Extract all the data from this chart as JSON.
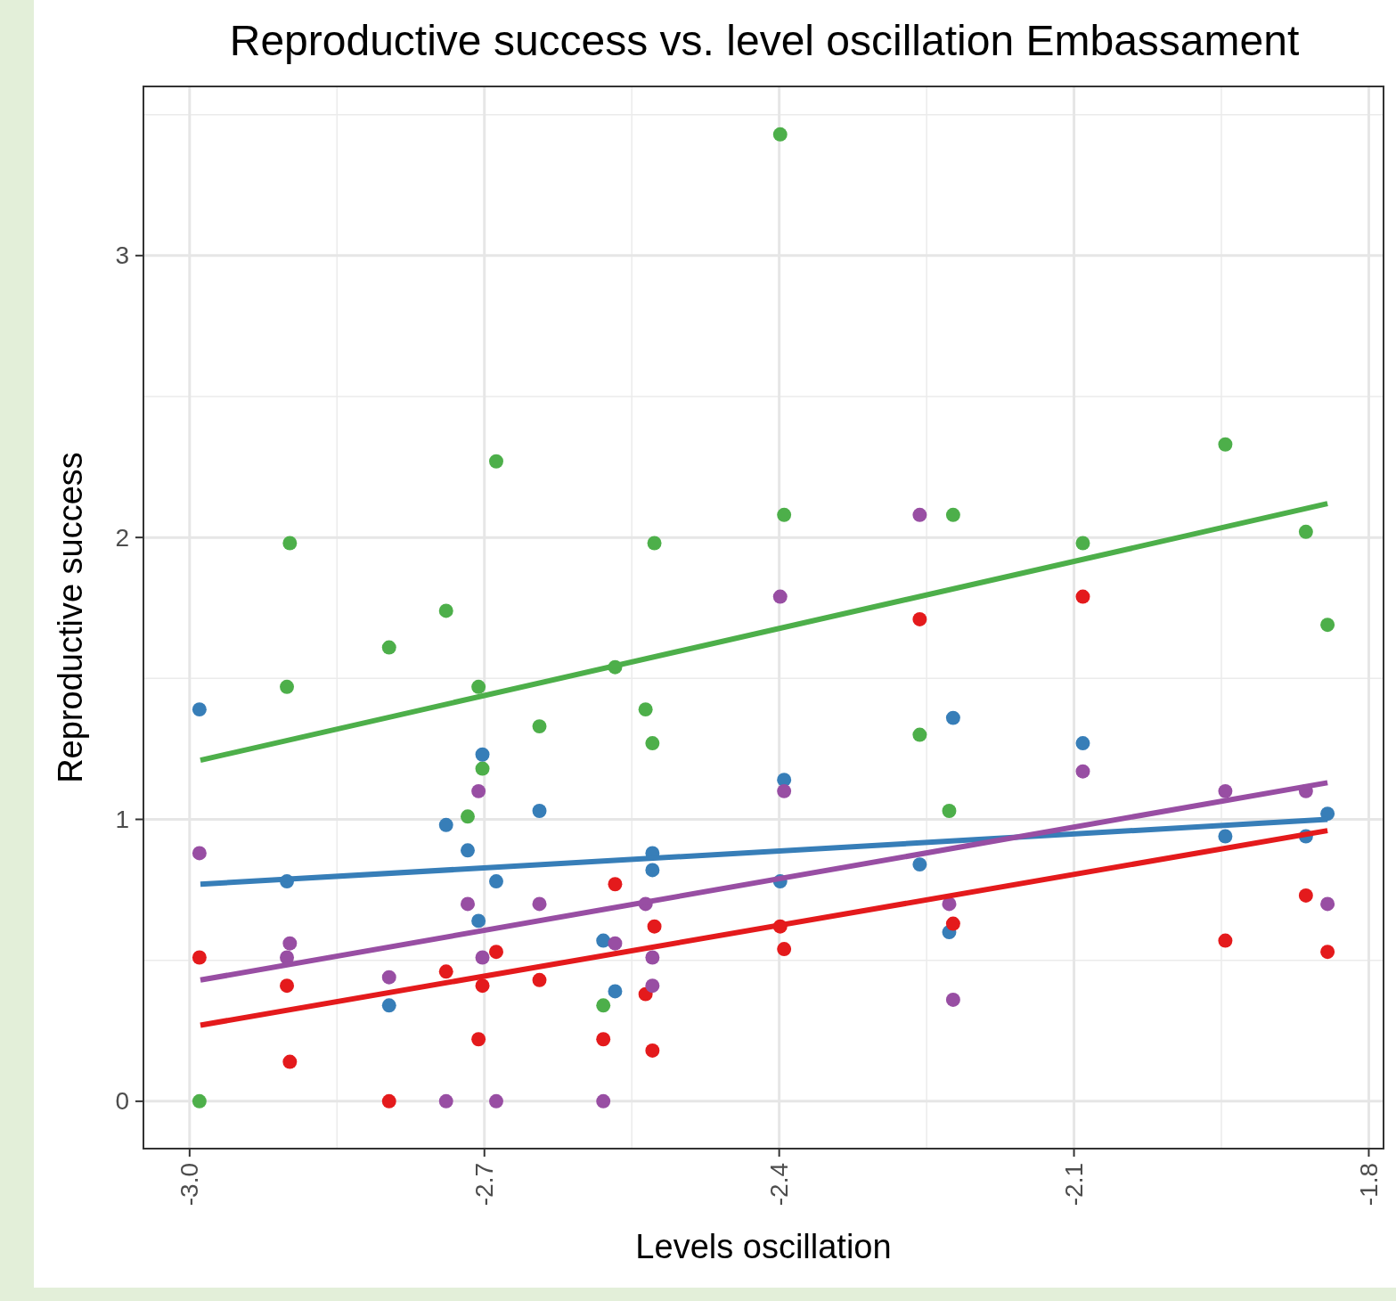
{
  "chart_data": {
    "type": "scatter",
    "title": "Reproductive success vs. level oscillation Embassament",
    "xlabel": "Levels oscillation",
    "ylabel": "Reproductive success",
    "xlim": [
      -3.047,
      -1.785
    ],
    "ylim": [
      -0.168,
      3.6
    ],
    "xticks": [
      {
        "value": -3.0,
        "label": "-3.0"
      },
      {
        "value": -2.7,
        "label": "-2.7"
      },
      {
        "value": -2.4,
        "label": "-2.4"
      },
      {
        "value": -2.1,
        "label": "-2.1"
      },
      {
        "value": -1.8,
        "label": "-1.8"
      }
    ],
    "yticks": [
      0,
      1,
      2,
      3
    ],
    "grid": true,
    "series": [
      {
        "color": "#4daf4a",
        "marker": "circle",
        "x": [
          -2.99,
          -2.898,
          -2.901,
          -2.797,
          -2.739,
          -2.706,
          -2.702,
          -2.717,
          -2.688,
          -2.644,
          -2.579,
          -2.567,
          -2.536,
          -2.529,
          -2.527,
          -2.399,
          -2.395,
          -2.257,
          -2.223,
          -2.227,
          -2.091,
          -1.946,
          -1.864,
          -1.842
        ],
        "values": [
          0,
          1.98,
          1.47,
          1.61,
          1.74,
          1.47,
          1.18,
          1.01,
          2.27,
          1.33,
          0.34,
          1.54,
          1.39,
          1.27,
          1.98,
          3.43,
          2.08,
          1.3,
          2.08,
          1.03,
          1.98,
          2.33,
          2.02,
          1.69
        ]
      },
      {
        "color": "#377eb8",
        "marker": "circle",
        "x": [
          -2.99,
          -2.901,
          -2.797,
          -2.739,
          -2.717,
          -2.706,
          -2.702,
          -2.688,
          -2.644,
          -2.579,
          -2.567,
          -2.529,
          -2.529,
          -2.395,
          -2.399,
          -2.257,
          -2.223,
          -2.227,
          -2.091,
          -1.946,
          -1.864,
          -1.842
        ],
        "values": [
          1.39,
          0.78,
          0.34,
          0.98,
          0.89,
          0.64,
          1.23,
          0.78,
          1.03,
          0.57,
          0.39,
          0.88,
          0.82,
          1.14,
          0.78,
          0.84,
          1.36,
          0.6,
          1.27,
          0.94,
          0.94,
          1.02
        ]
      },
      {
        "color": "#e41a1c",
        "marker": "circle",
        "x": [
          -2.99,
          -2.901,
          -2.898,
          -2.797,
          -2.739,
          -2.706,
          -2.702,
          -2.688,
          -2.644,
          -2.579,
          -2.567,
          -2.536,
          -2.529,
          -2.527,
          -2.399,
          -2.395,
          -2.257,
          -2.223,
          -2.091,
          -1.946,
          -1.864,
          -1.842
        ],
        "values": [
          0.51,
          0.41,
          0.14,
          0,
          0.46,
          0.22,
          0.41,
          0.53,
          0.43,
          0.22,
          0.77,
          0.38,
          0.18,
          0.62,
          0.62,
          0.54,
          1.71,
          0.63,
          1.79,
          0.57,
          0.73,
          0.53
        ]
      },
      {
        "color": "#984ea3",
        "marker": "circle",
        "x": [
          -2.99,
          -2.898,
          -2.901,
          -2.797,
          -2.739,
          -2.717,
          -2.706,
          -2.702,
          -2.688,
          -2.644,
          -2.579,
          -2.567,
          -2.536,
          -2.529,
          -2.529,
          -2.399,
          -2.395,
          -2.257,
          -2.227,
          -2.223,
          -2.091,
          -1.946,
          -1.864,
          -1.842
        ],
        "values": [
          0.88,
          0.56,
          0.51,
          0.44,
          0,
          0.7,
          1.1,
          0.51,
          0,
          0.7,
          0,
          0.56,
          0.7,
          0.51,
          0.41,
          1.79,
          1.1,
          2.08,
          0.7,
          0.36,
          1.17,
          1.1,
          1.1,
          0.7
        ]
      },
      {
        "type": "line",
        "color": "#4daf4a",
        "marker": "none",
        "x": [
          -2.989,
          -1.842
        ],
        "values": [
          1.21,
          2.12
        ]
      },
      {
        "type": "line",
        "color": "#377eb8",
        "marker": "none",
        "x": [
          -2.989,
          -1.842
        ],
        "values": [
          0.77,
          1.0
        ]
      },
      {
        "type": "line",
        "color": "#984ea3",
        "marker": "none",
        "x": [
          -2.989,
          -1.842
        ],
        "values": [
          0.43,
          1.13
        ]
      },
      {
        "type": "line",
        "color": "#e41a1c",
        "marker": "none",
        "x": [
          -2.989,
          -1.842
        ],
        "values": [
          0.27,
          0.96
        ]
      }
    ]
  }
}
